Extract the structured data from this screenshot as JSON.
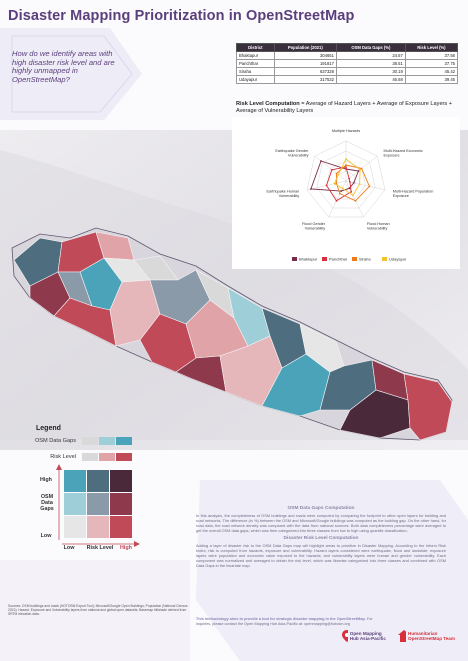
{
  "title": "Disaster Mapping Prioritization in OpenStreetMap",
  "question": "How do we identify areas with high disaster risk level and are highly unmapped in OpenStreetMap?",
  "table": {
    "headers": [
      "District",
      "Population (2021)",
      "OSM Data Gaps (%)",
      "Risk Level (%)"
    ],
    "rows": [
      [
        "Bhaktapur",
        "304651",
        "24.57",
        "37.56"
      ],
      [
        "Panchthar",
        "191817",
        "38.51",
        "37.75"
      ],
      [
        "Siraha",
        "637328",
        "30.19",
        "45.42"
      ],
      [
        "Udayapur",
        "317532",
        "46.68",
        "39.45"
      ]
    ]
  },
  "formula": {
    "bold": "Risk Level Computation",
    "text": " = Average of Hazard Layers + Average of Exposure Layers + Average of Vulnerability Layers"
  },
  "chart_data": {
    "type": "radar",
    "axes": [
      "Multiple Hazards",
      "Multi-Hazard Economic Exposure",
      "Multi-Hazard Population Exposure",
      "Flood Human Vulnerability",
      "Flood Gender Vulnerability",
      "Earthquake Human Vulnerability",
      "Earthquake Gender Vulnerability"
    ],
    "series": [
      {
        "name": "Bhaktapur",
        "color": "#7a2a4a",
        "values": [
          0.3,
          0.4,
          0.2,
          0.2,
          0.28,
          0.9,
          0.8
        ]
      },
      {
        "name": "Panchthar",
        "color": "#d8303a",
        "values": [
          0.35,
          0.1,
          0.1,
          0.3,
          0.55,
          0.5,
          0.45
        ]
      },
      {
        "name": "Siraha",
        "color": "#f07a1a",
        "values": [
          0.4,
          0.5,
          0.6,
          0.55,
          0.35,
          0.25,
          0.3
        ]
      },
      {
        "name": "Udayapur",
        "color": "#f4c430",
        "values": [
          0.55,
          0.45,
          0.35,
          0.4,
          0.2,
          0.3,
          0.25
        ]
      }
    ],
    "legend_position": "bottom"
  },
  "legend": {
    "title": "Legend",
    "osm_label": "OSM Data Gaps",
    "risk_label": "Risk Level",
    "osm_colors": [
      "#d9d9d9",
      "#9ecfd8",
      "#4aa3b8"
    ],
    "risk_colors": [
      "#d9d9d9",
      "#e0a3a7",
      "#c04a58"
    ],
    "bivariate": [
      [
        "#4aa3b8",
        "#4e6e80",
        "#4a2a3a"
      ],
      [
        "#9ecfd8",
        "#8a9aa8",
        "#8e3a4c"
      ],
      [
        "#e6e6e6",
        "#e6b7ba",
        "#c04a58"
      ]
    ],
    "high": "High",
    "low": "Low",
    "osm_axis": "OSM Data Gaps",
    "risk_axis": "Risk Level",
    "high_x": "High"
  },
  "info": {
    "h1": "OSM Data Gaps Computation",
    "p1": "In this analysis, the completeness of OSM buildings and roads were computed by comparing the footprint to other open layers for building and road networks. The difference (in %) between the OSM and Microsoft/Google buildings was computed as the building gap. On the other hand, for road data, the road network density was compared with the data from national sources. Both data completeness percentage were averaged to get the overall OSM data gaps, which was then categorized into three classes from low to high using quantile classification.",
    "h2": "Disaster Risk Level Computation",
    "p2": "Adding a layer of disaster risk to the OSM Data Gaps map will highlight areas to prioritize in Disaster Mapping. According to the Inform Risk Index, risk is computed from hazards, exposure and vulnerability. Hazard layers considered were earthquake, flood and landslide; exposure layers were population and economic value exposed to the hazards; and vulnerability layers were human and gender vulnerability. Each component was normalized and averaged to obtain the risk level, which was likewise categorized into three classes and combined with OSM Data Gaps in the bivariate map."
  },
  "note": {
    "lead": "This methodology aims to provide a tool for strategic disaster mapping in the OpenStreetMap.",
    "rest": "For inquiries, please contact the Open Mapping Hub Asia-Pacific at: openmapping@hotosm.org"
  },
  "sources": "Sources: OSM buildings and roads (HOTOSM Export Tool); Microsoft/Google Open Buildings; Population (National Census 2021); Hazard, Exposure and Vulnerability layers from national and global open datasets; Basemap hillshade derived from SRTM elevation data.",
  "logos": {
    "hub": "Open Mapping Hub Asia-Pacific",
    "hot": "Humanitarian OpenStreetMap Team"
  }
}
